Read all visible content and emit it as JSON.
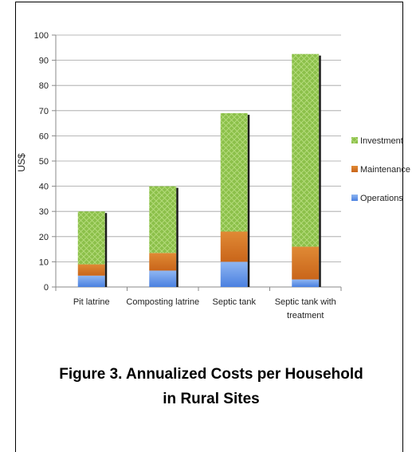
{
  "chart_data": {
    "type": "bar",
    "stacked": true,
    "categories": [
      "Pit latrine",
      "Composting latrine",
      "Septic tank",
      "Septic tank with treatment"
    ],
    "series": [
      {
        "name": "Operations",
        "values": [
          4.5,
          6.5,
          10,
          3
        ],
        "color": "#5a8ee8"
      },
      {
        "name": "Maintenance",
        "values": [
          4.5,
          7,
          12,
          13
        ],
        "color": "#d9741f"
      },
      {
        "name": "Investment",
        "values": [
          21,
          26.5,
          47,
          76.5
        ],
        "color": "#8cc04a"
      }
    ],
    "title": "",
    "xlabel": "",
    "ylabel": "US$",
    "ylim": [
      0,
      100
    ],
    "yticks": [
      "0",
      "10",
      "20",
      "30",
      "40",
      "50",
      "60",
      "70",
      "80",
      "90",
      "100"
    ],
    "grid": true,
    "legend": "right"
  },
  "caption": {
    "line1": "Figure 3. Annualized Costs per Household",
    "line2": "in Rural Sites"
  }
}
